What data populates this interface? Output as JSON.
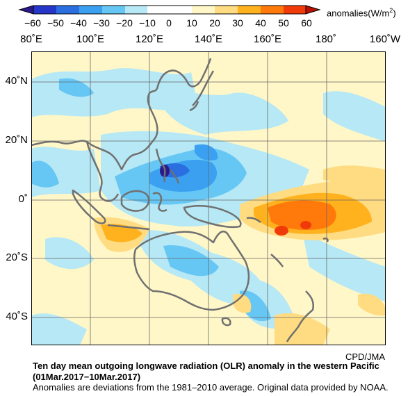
{
  "colorbar": {
    "ticks": [
      "−60",
      "−50",
      "−40",
      "−30",
      "−20",
      "−10",
      "0",
      "10",
      "20",
      "30",
      "40",
      "50",
      "60"
    ],
    "colors": [
      "#2a1a8c",
      "#2536c8",
      "#2a6ee0",
      "#3ba0f0",
      "#66c7f5",
      "#b6e8f5",
      "#ffffff",
      "#fff7c8",
      "#ffdc82",
      "#ffb21e",
      "#ff7a0a",
      "#f03a0a",
      "#b81000"
    ],
    "units_text": "anomalies(W/m",
    "units_sup": "2",
    "units_close": ")"
  },
  "map": {
    "lon_labels": [
      "80˚E",
      "100˚E",
      "120˚E",
      "140˚E",
      "160˚E",
      "180˚",
      "160˚W"
    ],
    "lat_labels": [
      "40˚N",
      "20˚N",
      "0˚",
      "20˚S",
      "40˚S"
    ]
  },
  "credit": "CPD/JMA",
  "caption": {
    "line1": "Ten day mean outgoing longwave radiation (OLR) anomaly in the western Pacific",
    "line2": "(01Mar.2017−10Mar.2017)",
    "line3": "Anomalies are deviations from the 1981–2010 average. Original data provided by NOAA."
  }
}
